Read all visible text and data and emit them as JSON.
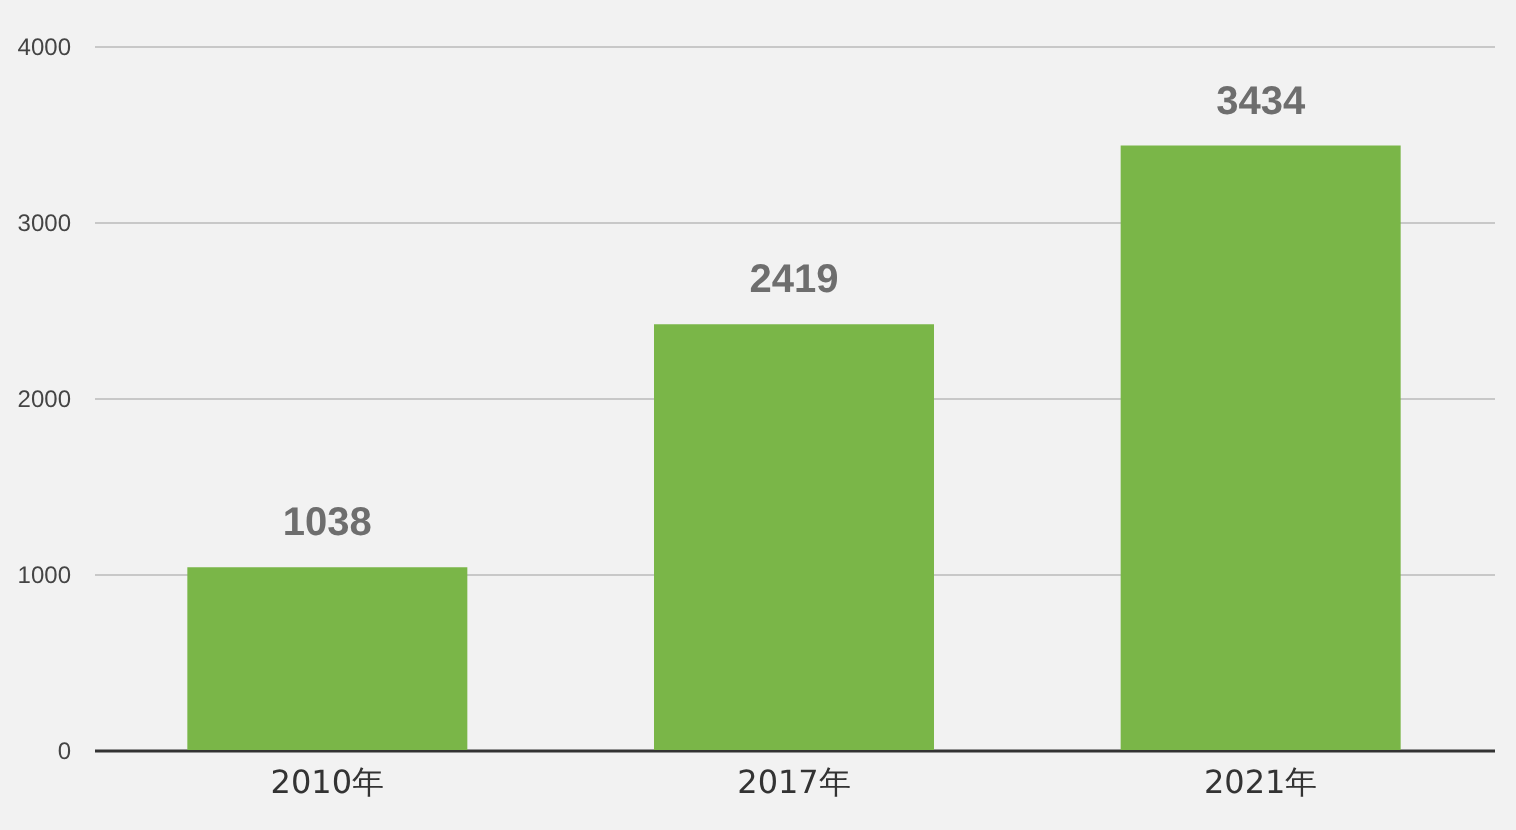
{
  "chart_data": {
    "type": "bar",
    "categories": [
      "2010年",
      "2017年",
      "2021年"
    ],
    "values": [
      1038,
      2419,
      3434
    ],
    "color": "#7ab648",
    "ylim": [
      0,
      4000
    ],
    "yticks": [
      0,
      1000,
      2000,
      3000,
      4000
    ],
    "grid": "y",
    "data_labels": true
  }
}
